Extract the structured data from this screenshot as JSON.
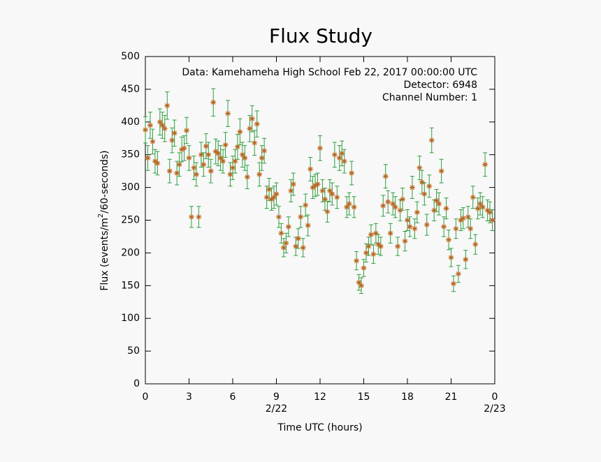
{
  "chart_data": {
    "type": "scatter",
    "title": "Flux Study",
    "xlabel": "Time UTC (hours)",
    "ylabel": {
      "text": "Flux (events/m",
      "superscript": "2",
      "suffix": "/60-seconds)"
    },
    "annotations": [
      "Data: Kamehameha High School Feb 22, 2017 00:00:00 UTC",
      "Detector: 6948",
      "Channel Number: 1"
    ],
    "xlim": [
      0,
      24
    ],
    "ylim": [
      0,
      500
    ],
    "xticks": [
      0,
      3,
      6,
      9,
      12,
      15,
      18,
      21,
      {
        "value": 24,
        "label": "0"
      }
    ],
    "date_ticks": [
      {
        "value": 9,
        "label": "2/22"
      },
      {
        "value": 24,
        "label": "2/23"
      }
    ],
    "yticks": [
      0,
      50,
      100,
      150,
      200,
      250,
      300,
      350,
      400,
      450,
      500
    ],
    "marker_color": "#b5651d",
    "errorbar_color": "#2e9e3e",
    "x": [
      0,
      0.167,
      0.333,
      0.5,
      0.667,
      0.833,
      1,
      1.167,
      1.333,
      1.5,
      1.667,
      1.833,
      2,
      2.167,
      2.333,
      2.5,
      2.667,
      2.833,
      3,
      3.167,
      3.333,
      3.5,
      3.667,
      3.833,
      4,
      4.167,
      4.333,
      4.5,
      4.667,
      4.833,
      5,
      5.167,
      5.333,
      5.5,
      5.667,
      5.833,
      6,
      6.167,
      6.333,
      6.5,
      6.667,
      6.833,
      7,
      7.167,
      7.333,
      7.5,
      7.667,
      7.833,
      8,
      8.167,
      8.333,
      8.5,
      8.667,
      8.833,
      9,
      9.167,
      9.333,
      9.5,
      9.667,
      9.833,
      10,
      10.167,
      10.333,
      10.5,
      10.667,
      10.833,
      11,
      11.167,
      11.333,
      11.5,
      11.667,
      11.833,
      12,
      12.167,
      12.333,
      12.5,
      12.667,
      12.833,
      13,
      13.167,
      13.333,
      13.5,
      13.667,
      13.833,
      14,
      14.167,
      14.333,
      14.5,
      14.667,
      14.833,
      15,
      15.167,
      15.333,
      15.5,
      15.667,
      15.833,
      16,
      16.167,
      16.333,
      16.5,
      16.667,
      16.833,
      17,
      17.167,
      17.333,
      17.5,
      17.667,
      17.833,
      18,
      18.167,
      18.333,
      18.5,
      18.667,
      18.833,
      19,
      19.167,
      19.333,
      19.5,
      19.667,
      19.833,
      20,
      20.167,
      20.333,
      20.5,
      20.667,
      20.833,
      21,
      21.167,
      21.333,
      21.5,
      21.667,
      21.833,
      22,
      22.167,
      22.333,
      22.5,
      22.667,
      22.833,
      23,
      23.167,
      23.333,
      23.5,
      23.667,
      23.833
    ],
    "values": [
      388,
      345,
      395,
      370,
      340,
      337,
      400,
      395,
      390,
      425,
      325,
      372,
      383,
      322,
      335,
      358,
      360,
      387,
      345,
      255,
      330,
      320,
      255,
      350,
      335,
      363,
      350,
      325,
      430,
      355,
      352,
      345,
      340,
      365,
      413,
      320,
      330,
      340,
      362,
      385,
      350,
      345,
      316,
      390,
      405,
      368,
      397,
      320,
      345,
      356,
      285,
      297,
      282,
      285,
      290,
      255,
      230,
      208,
      215,
      240,
      295,
      305,
      210,
      222,
      255,
      208,
      273,
      242,
      328,
      300,
      303,
      305,
      360,
      295,
      282,
      263,
      295,
      290,
      350,
      285,
      345,
      352,
      340,
      270,
      275,
      322,
      270,
      188,
      155,
      150,
      177,
      200,
      210,
      228,
      198,
      230,
      213,
      210,
      272,
      317,
      278,
      230,
      275,
      270,
      210,
      265,
      282,
      218,
      250,
      240,
      300,
      237,
      262,
      330,
      308,
      290,
      243,
      302,
      372,
      265,
      280,
      275,
      325,
      240,
      268,
      220,
      193,
      153,
      237,
      168,
      250,
      253,
      190,
      255,
      237,
      285,
      213,
      268,
      275,
      270,
      335,
      265,
      262,
      250
    ],
    "errors": [
      20,
      19,
      20,
      19,
      18,
      18,
      20,
      20,
      20,
      21,
      18,
      19,
      20,
      18,
      18,
      19,
      19,
      20,
      19,
      16,
      18,
      18,
      16,
      19,
      18,
      19,
      19,
      18,
      21,
      19,
      19,
      19,
      18,
      19,
      20,
      18,
      18,
      18,
      19,
      20,
      19,
      19,
      18,
      20,
      20,
      19,
      20,
      18,
      19,
      19,
      17,
      17,
      17,
      17,
      17,
      16,
      15,
      14,
      15,
      15,
      17,
      17,
      14,
      15,
      16,
      14,
      17,
      16,
      18,
      17,
      17,
      17,
      19,
      17,
      17,
      16,
      17,
      17,
      19,
      17,
      19,
      19,
      18,
      16,
      17,
      18,
      16,
      14,
      12,
      12,
      13,
      14,
      14,
      15,
      14,
      15,
      15,
      14,
      16,
      18,
      17,
      15,
      17,
      16,
      14,
      16,
      17,
      15,
      16,
      15,
      17,
      15,
      16,
      18,
      18,
      17,
      16,
      17,
      19,
      16,
      17,
      17,
      18,
      15,
      16,
      15,
      14,
      12,
      15,
      13,
      16,
      16,
      14,
      16,
      15,
      17,
      15,
      16,
      17,
      16,
      18,
      16,
      16,
      16
    ]
  }
}
